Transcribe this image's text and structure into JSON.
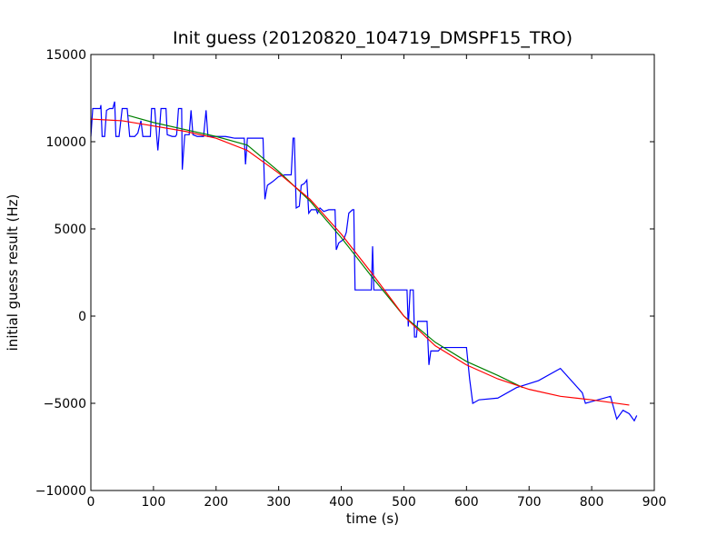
{
  "chart_data": {
    "type": "line",
    "title": "Init guess (20120820_104719_DMSPF15_TRO)",
    "xlabel": "time (s)",
    "ylabel": "initial guess result (Hz)",
    "xlim": [
      0,
      900
    ],
    "ylim": [
      -10000,
      15000
    ],
    "xticks": [
      0,
      100,
      200,
      300,
      400,
      500,
      600,
      700,
      800,
      900
    ],
    "yticks": [
      -10000,
      -5000,
      0,
      5000,
      10000,
      15000
    ],
    "xtick_labels": [
      "0",
      "100",
      "200",
      "300",
      "400",
      "500",
      "600",
      "700",
      "800",
      "900"
    ],
    "ytick_labels": [
      "−10000",
      "−5000",
      "0",
      "5000",
      "10000",
      "15000"
    ],
    "grid": false,
    "legend": "none",
    "series": [
      {
        "color": "#0000ff",
        "points": [
          [
            0,
            10300
          ],
          [
            3,
            11900
          ],
          [
            10,
            11900
          ],
          [
            15,
            11900
          ],
          [
            16,
            12100
          ],
          [
            18,
            10300
          ],
          [
            22,
            10300
          ],
          [
            25,
            11800
          ],
          [
            30,
            11900
          ],
          [
            35,
            11900
          ],
          [
            38,
            12300
          ],
          [
            40,
            10300
          ],
          [
            45,
            10300
          ],
          [
            50,
            11900
          ],
          [
            58,
            11900
          ],
          [
            62,
            10300
          ],
          [
            70,
            10300
          ],
          [
            75,
            10500
          ],
          [
            80,
            11200
          ],
          [
            83,
            10300
          ],
          [
            90,
            10300
          ],
          [
            95,
            10300
          ],
          [
            97,
            11900
          ],
          [
            102,
            11900
          ],
          [
            105,
            10400
          ],
          [
            107,
            9500
          ],
          [
            109,
            10400
          ],
          [
            112,
            11900
          ],
          [
            120,
            11900
          ],
          [
            122,
            10400
          ],
          [
            130,
            10300
          ],
          [
            135,
            10300
          ],
          [
            137,
            10400
          ],
          [
            140,
            11900
          ],
          [
            145,
            11900
          ],
          [
            146,
            8400
          ],
          [
            150,
            10400
          ],
          [
            155,
            10400
          ],
          [
            157,
            10400
          ],
          [
            160,
            11800
          ],
          [
            163,
            10400
          ],
          [
            170,
            10300
          ],
          [
            180,
            10300
          ],
          [
            184,
            11800
          ],
          [
            187,
            10300
          ],
          [
            200,
            10300
          ],
          [
            215,
            10300
          ],
          [
            230,
            10200
          ],
          [
            245,
            10200
          ],
          [
            247,
            8700
          ],
          [
            250,
            10200
          ],
          [
            260,
            10200
          ],
          [
            275,
            10200
          ],
          [
            278,
            6700
          ],
          [
            282,
            7500
          ],
          [
            290,
            7700
          ],
          [
            300,
            8000
          ],
          [
            310,
            8100
          ],
          [
            320,
            8100
          ],
          [
            323,
            10200
          ],
          [
            325,
            10200
          ],
          [
            328,
            6200
          ],
          [
            333,
            6300
          ],
          [
            336,
            7500
          ],
          [
            341,
            7600
          ],
          [
            345,
            7800
          ],
          [
            348,
            5900
          ],
          [
            352,
            6100
          ],
          [
            360,
            6100
          ],
          [
            362,
            5900
          ],
          [
            366,
            6200
          ],
          [
            372,
            6000
          ],
          [
            380,
            6100
          ],
          [
            390,
            6100
          ],
          [
            392,
            3800
          ],
          [
            396,
            4200
          ],
          [
            404,
            4400
          ],
          [
            408,
            4800
          ],
          [
            412,
            5900
          ],
          [
            418,
            6100
          ],
          [
            420,
            6100
          ],
          [
            422,
            1500
          ],
          [
            430,
            1500
          ],
          [
            445,
            1500
          ],
          [
            448,
            1500
          ],
          [
            450,
            4000
          ],
          [
            452,
            1500
          ],
          [
            460,
            1500
          ],
          [
            480,
            1500
          ],
          [
            490,
            1500
          ],
          [
            505,
            1500
          ],
          [
            507,
            -600
          ],
          [
            510,
            1500
          ],
          [
            515,
            1500
          ],
          [
            517,
            -1200
          ],
          [
            520,
            -1200
          ],
          [
            522,
            -300
          ],
          [
            530,
            -300
          ],
          [
            537,
            -300
          ],
          [
            540,
            -2800
          ],
          [
            543,
            -2000
          ],
          [
            555,
            -2000
          ],
          [
            560,
            -1800
          ],
          [
            580,
            -1800
          ],
          [
            600,
            -1800
          ],
          [
            605,
            -3600
          ],
          [
            610,
            -5000
          ],
          [
            620,
            -4800
          ],
          [
            650,
            -4700
          ],
          [
            680,
            -4100
          ],
          [
            715,
            -3700
          ],
          [
            750,
            -3000
          ],
          [
            785,
            -4400
          ],
          [
            790,
            -5000
          ],
          [
            800,
            -4900
          ],
          [
            830,
            -4600
          ],
          [
            840,
            -5900
          ],
          [
            850,
            -5400
          ],
          [
            860,
            -5600
          ],
          [
            868,
            -6000
          ],
          [
            872,
            -5700
          ]
        ]
      },
      {
        "color": "#008000",
        "points": [
          [
            60,
            11500
          ],
          [
            100,
            11100
          ],
          [
            150,
            10700
          ],
          [
            200,
            10300
          ],
          [
            250,
            9800
          ],
          [
            300,
            8300
          ],
          [
            350,
            6600
          ],
          [
            400,
            4500
          ],
          [
            450,
            2200
          ],
          [
            500,
            0
          ],
          [
            550,
            -1500
          ],
          [
            600,
            -2600
          ],
          [
            650,
            -3400
          ],
          [
            690,
            -4100
          ]
        ]
      },
      {
        "color": "#ff0000",
        "points": [
          [
            0,
            11300
          ],
          [
            50,
            11200
          ],
          [
            100,
            10900
          ],
          [
            150,
            10600
          ],
          [
            200,
            10200
          ],
          [
            250,
            9500
          ],
          [
            300,
            8200
          ],
          [
            350,
            6700
          ],
          [
            400,
            4700
          ],
          [
            450,
            2400
          ],
          [
            500,
            0
          ],
          [
            550,
            -1700
          ],
          [
            600,
            -2800
          ],
          [
            650,
            -3600
          ],
          [
            700,
            -4200
          ],
          [
            750,
            -4600
          ],
          [
            800,
            -4800
          ],
          [
            860,
            -5100
          ]
        ]
      }
    ]
  }
}
